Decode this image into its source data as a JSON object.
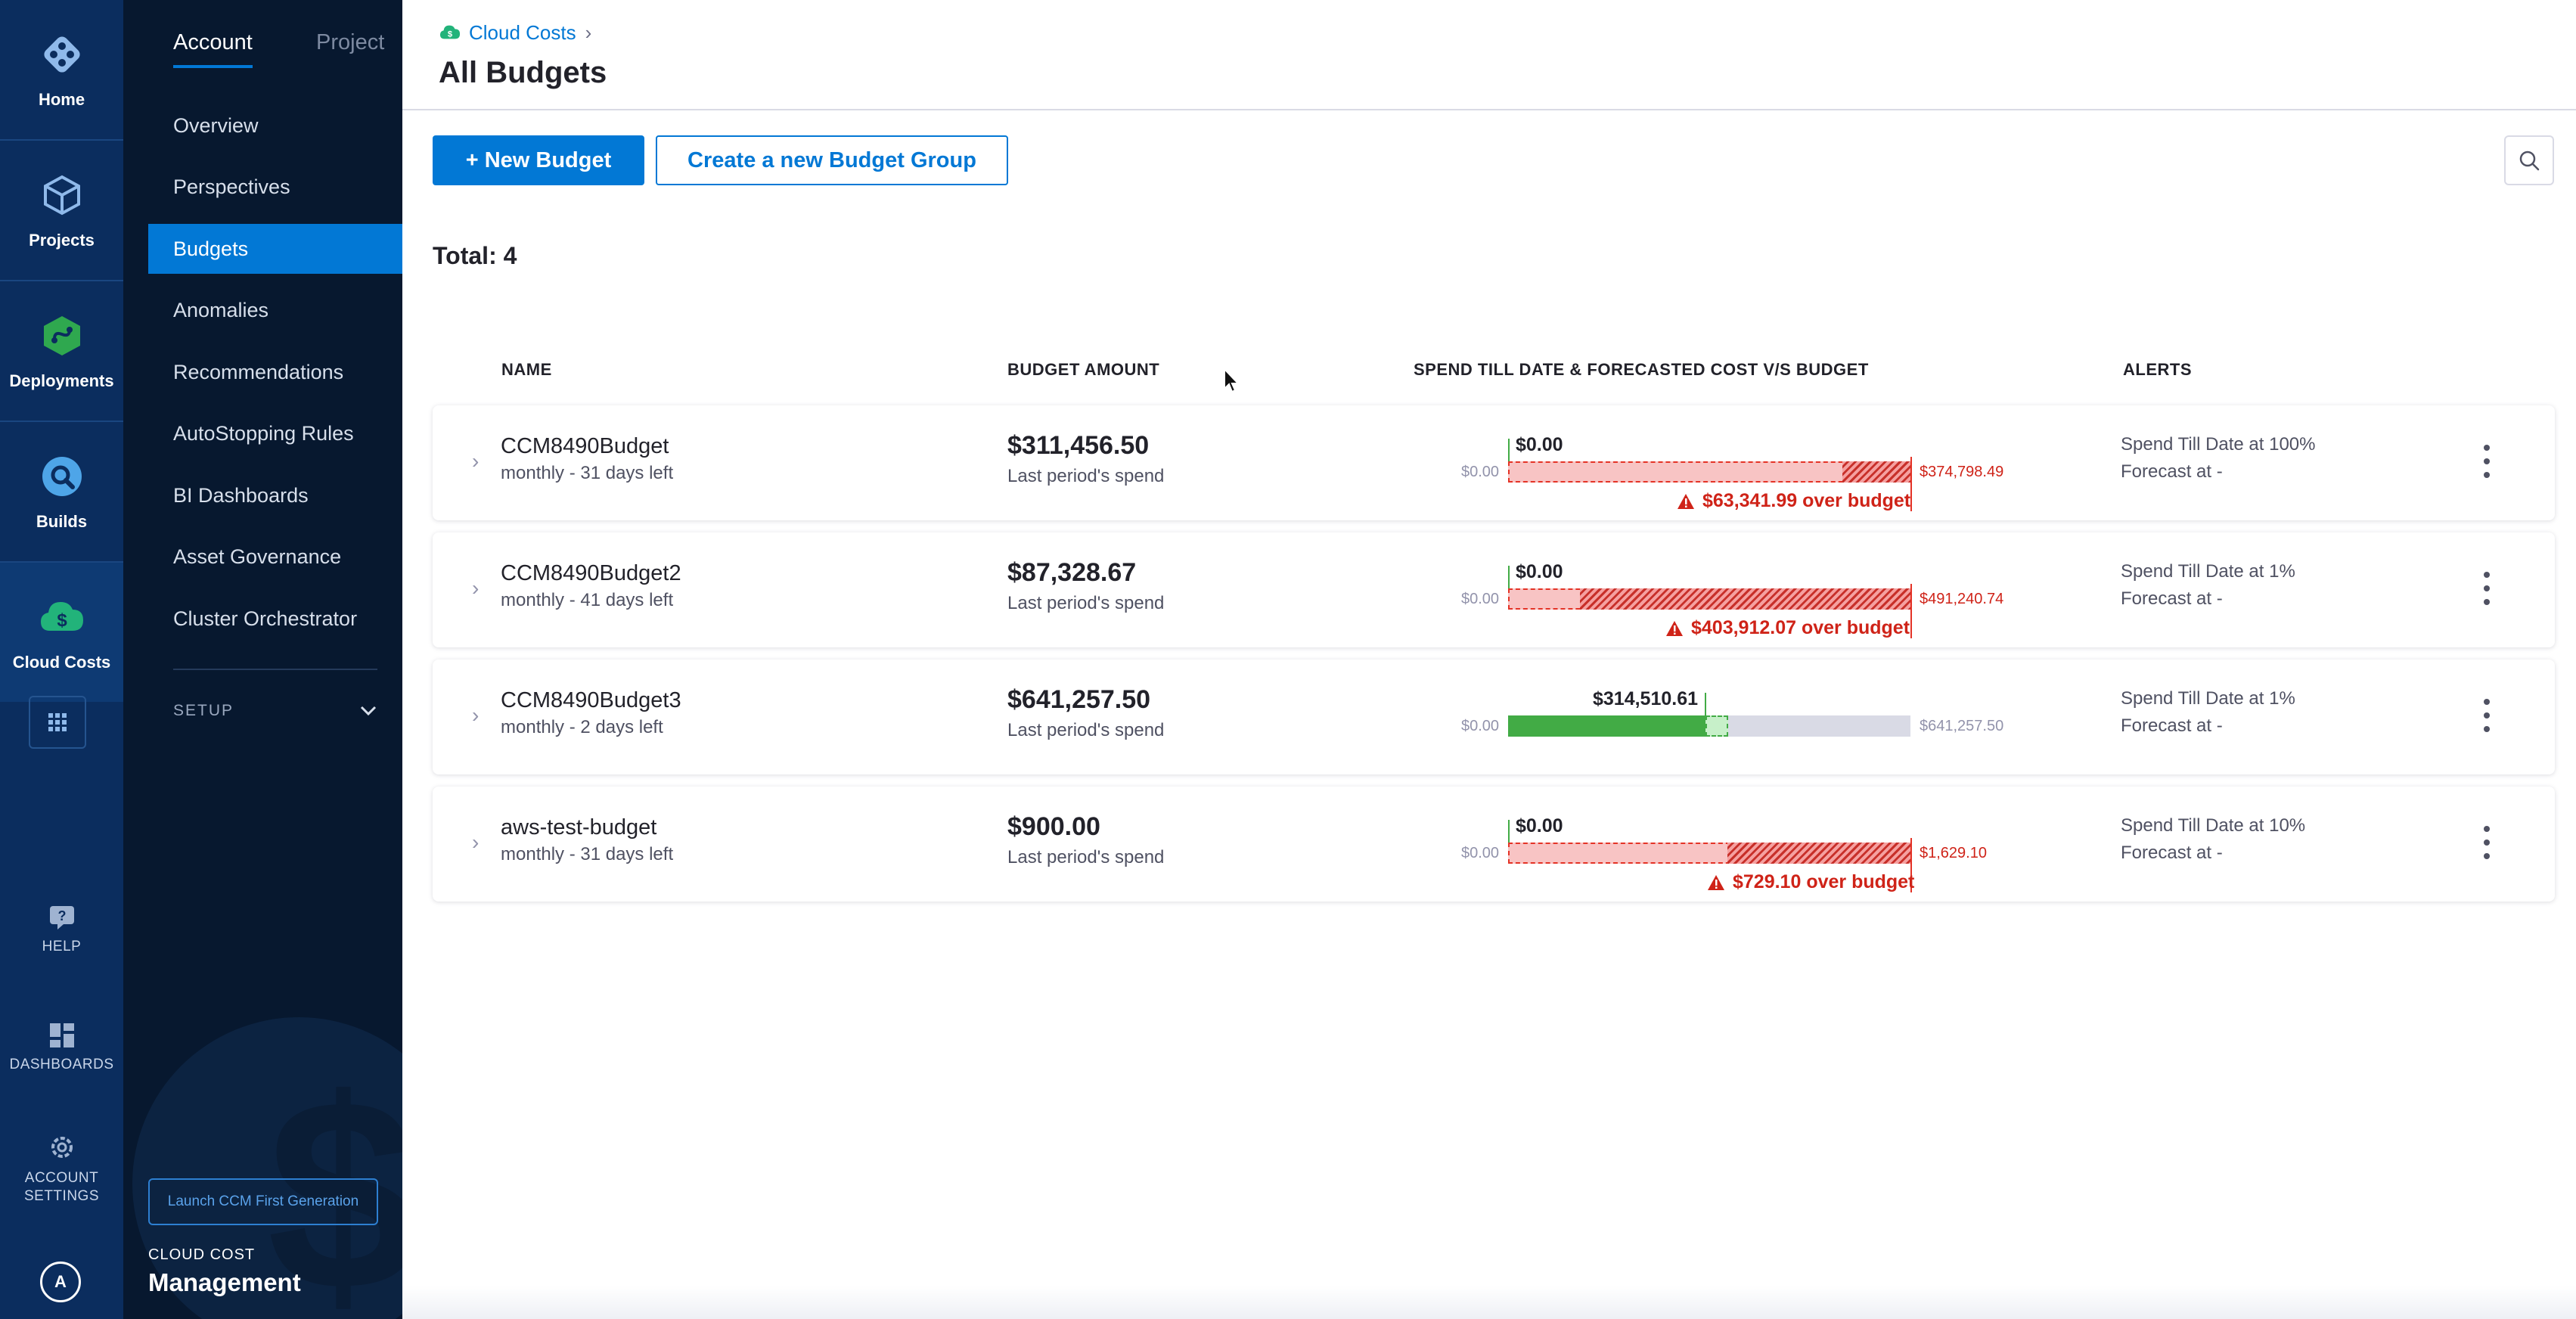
{
  "nav_rail": {
    "items": [
      {
        "label": "Home",
        "icon": "home-icon"
      },
      {
        "label": "Projects",
        "icon": "projects-cube-icon"
      },
      {
        "label": "Deployments",
        "icon": "deployments-icon"
      },
      {
        "label": "Builds",
        "icon": "builds-icon"
      },
      {
        "label": "Cloud Costs",
        "icon": "cloud-costs-icon"
      }
    ],
    "bottom": [
      {
        "label": "HELP",
        "icon": "help-icon"
      },
      {
        "label": "DASHBOARDS",
        "icon": "dashboards-icon"
      },
      {
        "label": "ACCOUNT SETTINGS",
        "icon": "settings-gear-icon"
      }
    ],
    "avatar_initial": "A"
  },
  "sidebar": {
    "tabs": [
      {
        "label": "Account",
        "active": true
      },
      {
        "label": "Project",
        "active": false
      }
    ],
    "items": [
      {
        "label": "Overview"
      },
      {
        "label": "Perspectives"
      },
      {
        "label": "Budgets"
      },
      {
        "label": "Anomalies"
      },
      {
        "label": "Recommendations"
      },
      {
        "label": "AutoStopping Rules"
      },
      {
        "label": "BI Dashboards"
      },
      {
        "label": "Asset Governance"
      },
      {
        "label": "Cluster Orchestrator"
      }
    ],
    "active_item": "Budgets",
    "setup_label": "SETUP",
    "launch_button": "Launch CCM First Generation",
    "module_small": "CLOUD COST",
    "module_big": "Management"
  },
  "header": {
    "breadcrumb": "Cloud Costs",
    "title": "All Budgets"
  },
  "toolbar": {
    "new_budget": "+ New Budget",
    "new_group": "Create a new Budget Group"
  },
  "total_label": "Total: 4",
  "columns": [
    "NAME",
    "BUDGET AMOUNT",
    "SPEND TILL DATE & FORECASTED COST V/S BUDGET",
    "ALERTS"
  ],
  "colors": {
    "primary": "#0278d5",
    "danger": "#cf2318",
    "success": "#42ab45",
    "nav_bg": "#0b2d5e",
    "sidebar_bg": "#07182f"
  },
  "budgets": [
    {
      "name": "CCM8490Budget",
      "period": "monthly - 31 days left",
      "amount": "$311,456.50",
      "amount_sub": "Last period's spend",
      "spend": "$0.00",
      "bar_start": "$0.00",
      "bar_end": "$374,798.49",
      "over_msg": "$63,341.99 over budget",
      "alert1": "Spend Till Date at 100%",
      "alert2": "Forecast at -"
    },
    {
      "name": "CCM8490Budget2",
      "period": "monthly - 41 days left",
      "amount": "$87,328.67",
      "amount_sub": "Last period's spend",
      "spend": "$0.00",
      "bar_start": "$0.00",
      "bar_end": "$491,240.74",
      "over_msg": "$403,912.07 over budget",
      "alert1": "Spend Till Date at 1%",
      "alert2": "Forecast at -"
    },
    {
      "name": "CCM8490Budget3",
      "period": "monthly - 2 days left",
      "amount": "$641,257.50",
      "amount_sub": "Last period's spend",
      "spend": "$314,510.61",
      "bar_start": "$0.00",
      "bar_end": "$641,257.50",
      "over_msg": "",
      "alert1": "Spend Till Date at 1%",
      "alert2": "Forecast at -"
    },
    {
      "name": "aws-test-budget",
      "period": "monthly - 31 days left",
      "amount": "$900.00",
      "amount_sub": "Last period's spend",
      "spend": "$0.00",
      "bar_start": "$0.00",
      "bar_end": "$1,629.10",
      "over_msg": "$729.10 over budget",
      "alert1": "Spend Till Date at 10%",
      "alert2": "Forecast at -"
    }
  ]
}
